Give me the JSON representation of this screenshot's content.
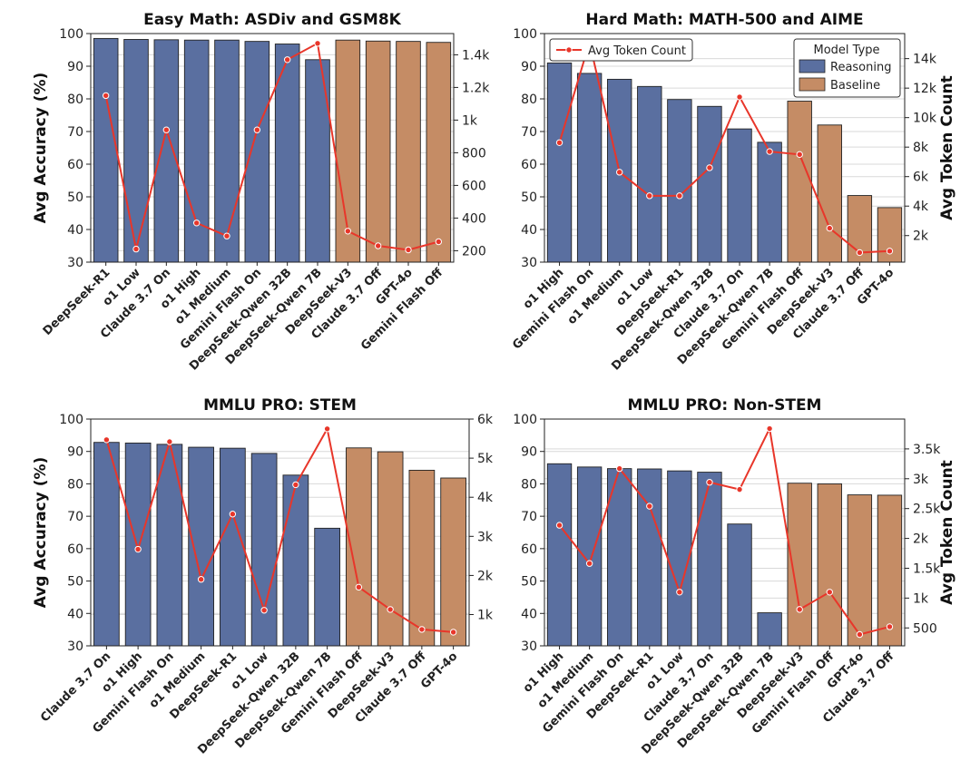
{
  "colors": {
    "reasoning": "#5a6fa0",
    "baseline": "#c58c65",
    "line": "#e8362a",
    "grid": "#d9d9d9"
  },
  "legend": {
    "line_label": "Avg Token Count",
    "model_type_title": "Model Type",
    "reasoning_label": "Reasoning",
    "baseline_label": "Baseline"
  },
  "chart_data": [
    {
      "type": "bar",
      "title": "Easy Math: ASDiv and GSM8K",
      "ylabel": "Avg Accuracy (%)",
      "ylabel_right": "",
      "ylim": [
        30,
        100
      ],
      "yticks": [
        30,
        40,
        50,
        60,
        70,
        80,
        90,
        100
      ],
      "categories": [
        "DeepSeek-R1",
        "o1 Low",
        "Claude 3.7 On",
        "o1 High",
        "o1 Medium",
        "Gemini Flash On",
        "DeepSeek-Qwen 32B",
        "DeepSeek-Qwen 7B",
        "DeepSeek-V3",
        "Claude 3.7 Off",
        "GPT-4o",
        "Gemini Flash Off"
      ],
      "model_type": [
        "Reasoning",
        "Reasoning",
        "Reasoning",
        "Reasoning",
        "Reasoning",
        "Reasoning",
        "Reasoning",
        "Reasoning",
        "Baseline",
        "Baseline",
        "Baseline",
        "Baseline"
      ],
      "accuracy": [
        98.5,
        98.2,
        98.1,
        98.0,
        98.0,
        97.6,
        96.8,
        92.0,
        98.0,
        97.7,
        97.6,
        97.3
      ],
      "token_count": [
        1150,
        210,
        940,
        370,
        290,
        940,
        1370,
        1470,
        320,
        230,
        205,
        255
      ],
      "y2lim": [
        130,
        1530
      ],
      "y2ticks": [
        200,
        400,
        600,
        800,
        1000,
        1200,
        1400
      ],
      "y2ticklabels": [
        "200",
        "400",
        "600",
        "800",
        "1k",
        "1.2k",
        "1.4k"
      ],
      "legend": false
    },
    {
      "type": "bar",
      "title": "Hard Math: MATH-500 and AIME",
      "ylabel": "",
      "ylabel_right": "Avg Token Count",
      "ylim": [
        30,
        100
      ],
      "yticks": [
        30,
        40,
        50,
        60,
        70,
        80,
        90,
        100
      ],
      "categories": [
        "o1 High",
        "Gemini Flash On",
        "o1 Medium",
        "o1 Low",
        "DeepSeek-R1",
        "DeepSeek-Qwen 32B",
        "Claude 3.7 On",
        "DeepSeek-Qwen 7B",
        "Gemini Flash Off",
        "DeepSeek-V3",
        "Claude 3.7 Off",
        "GPT-4o"
      ],
      "model_type": [
        "Reasoning",
        "Reasoning",
        "Reasoning",
        "Reasoning",
        "Reasoning",
        "Reasoning",
        "Reasoning",
        "Reasoning",
        "Baseline",
        "Baseline",
        "Baseline",
        "Baseline"
      ],
      "accuracy": [
        91.0,
        87.8,
        86.0,
        83.8,
        79.8,
        77.7,
        70.8,
        66.7,
        79.3,
        72.0,
        50.4,
        46.7
      ],
      "token_count": [
        8300,
        15100,
        6300,
        4700,
        4700,
        6600,
        11400,
        7700,
        7500,
        2500,
        850,
        950
      ],
      "y2lim": [
        200,
        15700
      ],
      "y2ticks": [
        2000,
        4000,
        6000,
        8000,
        10000,
        12000,
        14000
      ],
      "y2ticklabels": [
        "2k",
        "4k",
        "6k",
        "8k",
        "10k",
        "12k",
        "14k"
      ],
      "legend": true
    },
    {
      "type": "bar",
      "title": "MMLU PRO: STEM",
      "ylabel": "Avg Accuracy (%)",
      "ylabel_right": "",
      "ylim": [
        30,
        100
      ],
      "yticks": [
        30,
        40,
        50,
        60,
        70,
        80,
        90,
        100
      ],
      "categories": [
        "Claude 3.7 On",
        "o1 High",
        "Gemini Flash On",
        "o1 Medium",
        "DeepSeek-R1",
        "o1 Low",
        "DeepSeek-Qwen 32B",
        "DeepSeek-Qwen 7B",
        "Gemini Flash Off",
        "DeepSeek-V3",
        "Claude 3.7 Off",
        "GPT-4o"
      ],
      "model_type": [
        "Reasoning",
        "Reasoning",
        "Reasoning",
        "Reasoning",
        "Reasoning",
        "Reasoning",
        "Reasoning",
        "Reasoning",
        "Baseline",
        "Baseline",
        "Baseline",
        "Baseline"
      ],
      "accuracy": [
        92.8,
        92.6,
        92.2,
        91.3,
        91.0,
        89.4,
        82.7,
        66.3,
        91.1,
        89.9,
        84.2,
        81.8
      ],
      "token_count": [
        5470,
        2670,
        5420,
        1900,
        3570,
        1110,
        4320,
        5750,
        1700,
        1130,
        620,
        550
      ],
      "y2lim": [
        200,
        6000
      ],
      "y2ticks": [
        1000,
        2000,
        3000,
        4000,
        5000,
        6000
      ],
      "y2ticklabels": [
        "1k",
        "2k",
        "3k",
        "4k",
        "5k",
        "6k"
      ],
      "legend": false
    },
    {
      "type": "bar",
      "title": "MMLU PRO: Non-STEM",
      "ylabel": "",
      "ylabel_right": "Avg Token Count",
      "ylim": [
        30,
        100
      ],
      "yticks": [
        30,
        40,
        50,
        60,
        70,
        80,
        90,
        100
      ],
      "categories": [
        "o1 High",
        "o1 Medium",
        "Gemini Flash On",
        "DeepSeek-R1",
        "o1 Low",
        "Claude 3.7 On",
        "DeepSeek-Qwen 32B",
        "DeepSeek-Qwen 7B",
        "DeepSeek-V3",
        "Gemini Flash Off",
        "GPT-4o",
        "Claude 3.7 Off"
      ],
      "model_type": [
        "Reasoning",
        "Reasoning",
        "Reasoning",
        "Reasoning",
        "Reasoning",
        "Reasoning",
        "Reasoning",
        "Reasoning",
        "Baseline",
        "Baseline",
        "Baseline",
        "Baseline"
      ],
      "accuracy": [
        86.2,
        85.2,
        84.7,
        84.6,
        84.0,
        83.6,
        67.6,
        40.2,
        80.2,
        80.0,
        76.6,
        76.5
      ],
      "token_count": [
        2220,
        1580,
        3170,
        2540,
        1100,
        2940,
        2820,
        3840,
        810,
        1100,
        390,
        520
      ],
      "y2lim": [
        200,
        4000
      ],
      "y2ticks": [
        500,
        1000,
        1500,
        2000,
        2500,
        3000,
        3500
      ],
      "y2ticklabels": [
        "500",
        "1k",
        "1.5k",
        "2k",
        "2.5k",
        "3k",
        "3.5k"
      ],
      "legend": false
    }
  ]
}
